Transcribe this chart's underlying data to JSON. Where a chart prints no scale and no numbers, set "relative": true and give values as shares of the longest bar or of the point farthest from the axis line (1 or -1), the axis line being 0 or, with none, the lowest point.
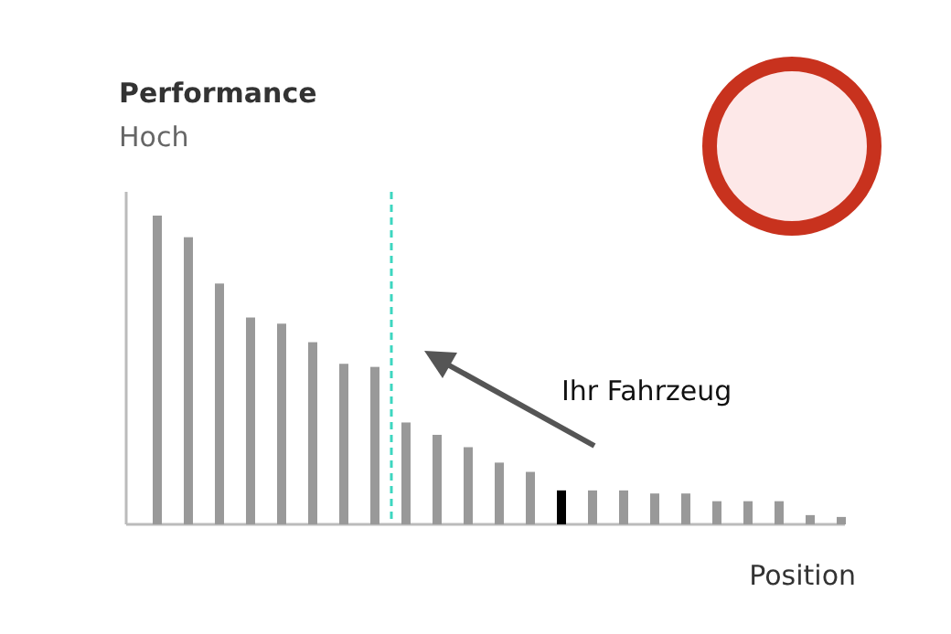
{
  "chart_data": {
    "type": "bar",
    "title": "Performance",
    "subtitle": "Hoch",
    "xlabel": "Position",
    "relative": true,
    "categories": [
      null,
      null,
      null,
      null,
      null,
      null,
      null,
      null,
      null,
      null,
      null,
      null,
      null,
      null,
      null,
      null,
      null,
      null,
      null,
      null,
      null,
      null,
      null
    ],
    "values": [
      1,
      0.93,
      0.78,
      0.67,
      0.65,
      0.59,
      0.52,
      0.51,
      0.33,
      0.29,
      0.25,
      0.2,
      0.17,
      0.11,
      0.11,
      0.11,
      0.1,
      0.1,
      0.075,
      0.075,
      0.075,
      0.03,
      0.024
    ],
    "colors": [
      "#999999",
      "#999999",
      "#999999",
      "#999999",
      "#999999",
      "#999999",
      "#999999",
      "#999999",
      "#999999",
      "#999999",
      "#999999",
      "#999999",
      "#999999",
      "#000000",
      "#999999",
      "#999999",
      "#999999",
      "#999999",
      "#999999",
      "#999999",
      "#999999",
      "#999999",
      "#999999"
    ],
    "annotations": [
      "Ihr Fahrzeug"
    ]
  }
}
